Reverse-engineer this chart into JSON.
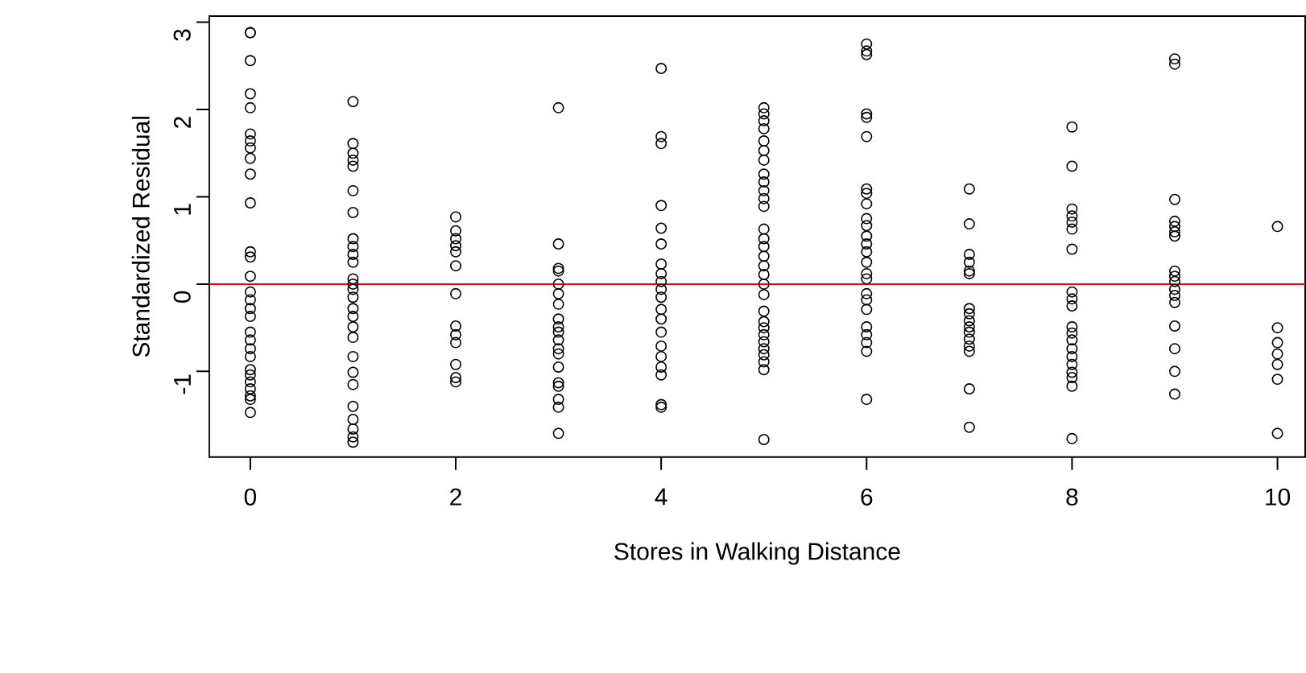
{
  "chart_data": {
    "type": "scatter",
    "xlabel": "Stores in Walking Distance",
    "ylabel": "Standardized Residual",
    "xlim": [
      -0.4,
      10.27
    ],
    "ylim": [
      -1.98,
      3.07
    ],
    "xticks": [
      0,
      2,
      4,
      6,
      8,
      10
    ],
    "yticks": [
      -1,
      0,
      1,
      2,
      3
    ],
    "marker": "circle",
    "ref_lines": [
      {
        "axis": "y",
        "value": 0,
        "color": "#ff0000"
      }
    ],
    "series": [
      {
        "color": "#000000",
        "x": [
          0,
          0,
          0,
          0,
          0,
          0,
          0,
          0,
          0,
          0,
          0,
          0,
          0,
          0,
          0,
          0,
          0,
          0,
          0,
          0,
          0,
          0,
          0,
          0,
          0,
          0,
          0,
          0,
          0,
          1,
          1,
          1,
          1,
          1,
          1,
          1,
          1,
          1,
          1,
          1,
          1,
          1,
          1,
          1,
          1,
          1,
          1,
          1,
          1,
          1,
          1,
          1,
          1,
          1,
          1,
          1,
          2,
          2,
          2,
          2,
          2,
          2,
          2,
          2,
          2,
          2,
          2,
          2,
          2,
          3,
          3,
          3,
          3,
          3,
          3,
          3,
          3,
          3,
          3,
          3,
          3,
          3,
          3,
          3,
          3,
          3,
          3,
          3,
          4,
          4,
          4,
          4,
          4,
          4,
          4,
          4,
          4,
          4,
          4,
          4,
          4,
          4,
          4,
          4,
          4,
          4,
          4,
          4,
          5,
          5,
          5,
          5,
          5,
          5,
          5,
          5,
          5,
          5,
          5,
          5,
          5,
          5,
          5,
          5,
          5,
          5,
          5,
          5,
          5,
          5,
          5,
          5,
          5,
          5,
          5,
          5,
          5,
          5,
          6,
          6,
          6,
          6,
          6,
          6,
          6,
          6,
          6,
          6,
          6,
          6,
          6,
          6,
          6,
          6,
          6,
          6,
          6,
          6,
          6,
          6,
          6,
          6,
          6,
          7,
          7,
          7,
          7,
          7,
          7,
          7,
          7,
          7,
          7,
          7,
          7,
          7,
          7,
          7,
          7,
          8,
          8,
          8,
          8,
          8,
          8,
          8,
          8,
          8,
          8,
          8,
          8,
          8,
          8,
          8,
          8,
          8,
          8,
          8,
          8,
          9,
          9,
          9,
          9,
          9,
          9,
          9,
          9,
          9,
          9,
          9,
          9,
          9,
          9,
          9,
          9,
          9,
          10,
          10,
          10,
          10,
          10,
          10,
          10
        ],
        "values": [
          2.88,
          2.56,
          2.18,
          2.02,
          1.72,
          1.64,
          1.56,
          1.44,
          1.26,
          0.93,
          0.37,
          0.31,
          0.09,
          -0.09,
          -0.18,
          -0.28,
          -0.37,
          -0.55,
          -0.64,
          -0.74,
          -0.83,
          -0.98,
          -1.04,
          -1.12,
          -1.2,
          -1.28,
          -1.32,
          -1.47,
          2.88,
          2.09,
          1.61,
          1.5,
          1.42,
          1.35,
          1.07,
          0.82,
          0.52,
          0.43,
          0.34,
          0.25,
          0.06,
          0,
          -0.06,
          -0.15,
          -0.28,
          -0.37,
          -0.49,
          -0.61,
          -0.83,
          -1.01,
          -1.15,
          -1.4,
          -1.55,
          -1.66,
          -1.75,
          -1.81,
          0.77,
          0.61,
          0.52,
          0.44,
          0.37,
          0.21,
          -0.11,
          -0.48,
          -0.58,
          -0.67,
          -0.92,
          -1.07,
          -1.12,
          2.02,
          0.46,
          0.18,
          0.15,
          0,
          -0.11,
          -0.23,
          -0.4,
          -0.49,
          -0.55,
          -0.64,
          -0.74,
          -0.8,
          -0.95,
          -1.13,
          -1.17,
          -1.32,
          -1.41,
          -1.71,
          2.47,
          1.69,
          1.61,
          0.9,
          0.64,
          0.46,
          0.23,
          0.12,
          0.03,
          -0.06,
          -0.15,
          -0.29,
          -0.4,
          -0.55,
          -0.71,
          -0.83,
          -0.95,
          -1.04,
          -1.38,
          -1.41,
          2.02,
          1.95,
          1.87,
          1.78,
          1.64,
          1.53,
          1.42,
          1.26,
          1.17,
          1.07,
          0.98,
          0.89,
          0.63,
          0.52,
          0.43,
          0.32,
          0.21,
          0.11,
          0,
          -0.12,
          -0.31,
          -0.43,
          -0.5,
          -0.58,
          -0.66,
          -0.74,
          -0.81,
          -0.89,
          -0.98,
          -1.78,
          2.75,
          2.67,
          2.63,
          1.95,
          1.91,
          1.69,
          1.09,
          1.04,
          0.92,
          0.75,
          0.67,
          0.55,
          0.46,
          0.37,
          0.25,
          0.12,
          0.06,
          -0.11,
          -0.18,
          -0.29,
          -0.49,
          -0.58,
          -0.67,
          -0.77,
          -1.32,
          1.09,
          0.69,
          0.34,
          0.25,
          0.15,
          0.12,
          -0.28,
          -0.34,
          -0.42,
          -0.49,
          -0.55,
          -0.63,
          -0.71,
          -0.77,
          -1.2,
          -1.64,
          1.8,
          1.35,
          0.86,
          0.78,
          0.71,
          0.63,
          0.4,
          -0.09,
          -0.17,
          -0.25,
          -0.49,
          -0.56,
          -0.64,
          -0.74,
          -0.83,
          -0.92,
          -1.01,
          -1.07,
          -1.17,
          -1.77,
          2.58,
          2.52,
          0.97,
          0.72,
          0.66,
          0.6,
          0.55,
          0.15,
          0.09,
          0.03,
          -0.06,
          -0.13,
          -0.21,
          -0.48,
          -0.74,
          -1.0,
          -1.26,
          0.66,
          -0.5,
          -0.67,
          -0.8,
          -0.92,
          -1.09,
          -1.71
        ]
      }
    ]
  }
}
